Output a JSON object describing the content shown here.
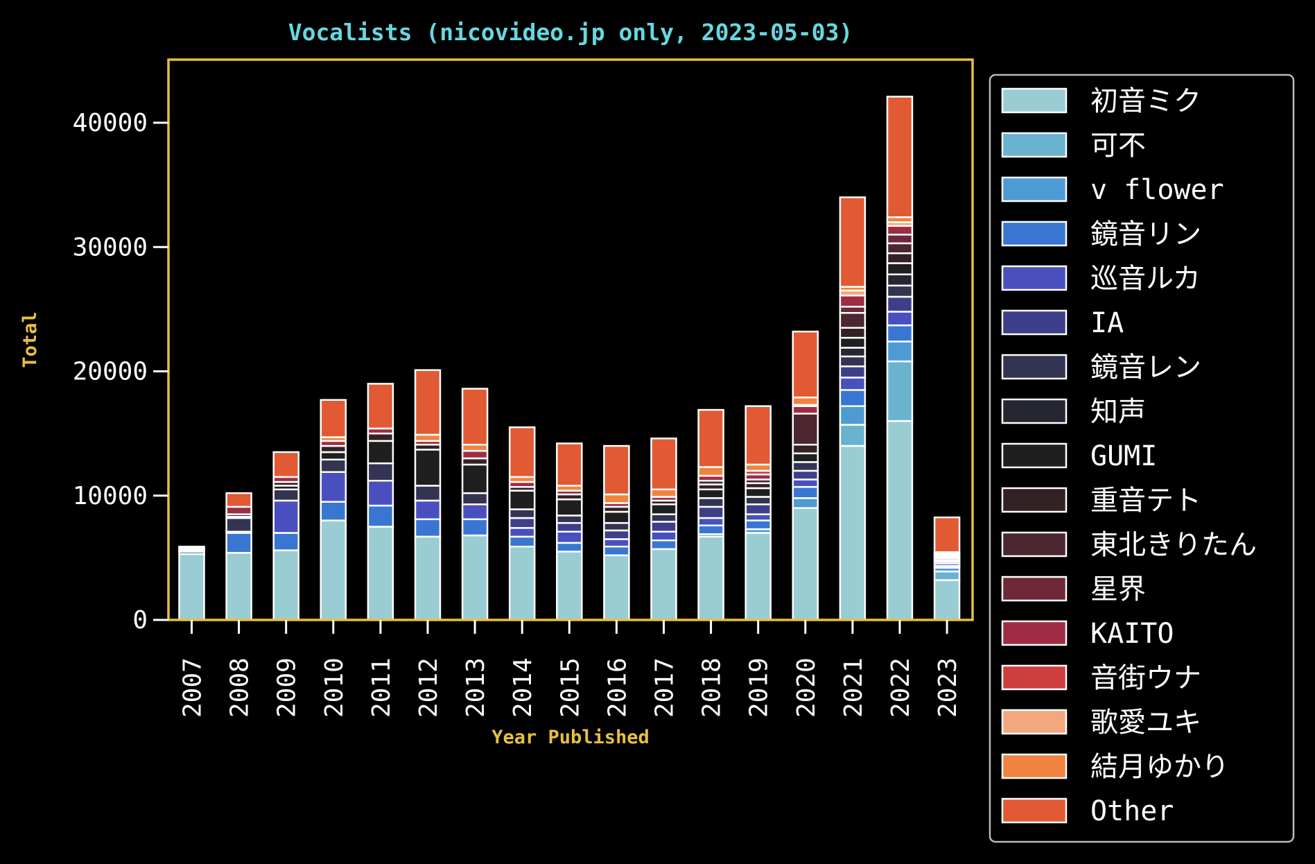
{
  "chart_data": {
    "type": "bar",
    "stacked": true,
    "title": "Vocalists (nicovideo.jp only, 2023-05-03)",
    "xlabel": "Year Published",
    "ylabel": "Total",
    "ylim": [
      0,
      45000
    ],
    "yticks": [
      0,
      10000,
      20000,
      30000,
      40000
    ],
    "legend": "outside-right",
    "grid": false,
    "colors": {
      "background": "#000000",
      "frame": "#e8c040",
      "title": "#66d8e0",
      "axis_label": "#e8c040",
      "text": "#ffffff",
      "bar_edge": "#ffffff"
    },
    "categories": [
      "2007",
      "2008",
      "2009",
      "2010",
      "2011",
      "2012",
      "2013",
      "2014",
      "2015",
      "2016",
      "2017",
      "2018",
      "2019",
      "2020",
      "2021",
      "2022",
      "2023"
    ],
    "series": [
      {
        "name": "初音ミク",
        "color": "#99ccd3",
        "values": [
          5300,
          5400,
          5600,
          8000,
          7500,
          6700,
          6800,
          5900,
          5500,
          5200,
          5700,
          6700,
          7000,
          9000,
          14000,
          16000,
          3200
        ]
      },
      {
        "name": "可不",
        "color": "#6ab3cf",
        "values": [
          0,
          0,
          0,
          0,
          0,
          0,
          0,
          0,
          0,
          0,
          0,
          0,
          0,
          0,
          1700,
          4800,
          700
        ]
      },
      {
        "name": "v flower",
        "color": "#4e9bd4",
        "values": [
          0,
          0,
          0,
          0,
          0,
          0,
          0,
          0,
          0,
          0,
          0,
          200,
          300,
          800,
          1500,
          1600,
          300
        ]
      },
      {
        "name": "鏡音リン",
        "color": "#3876d2",
        "values": [
          200,
          1600,
          1400,
          1500,
          1700,
          1400,
          1300,
          800,
          700,
          700,
          700,
          700,
          700,
          900,
          1300,
          1300,
          150
        ]
      },
      {
        "name": "巡音ルカ",
        "color": "#4a4fc0",
        "values": [
          100,
          100,
          2600,
          2400,
          2000,
          1500,
          1200,
          700,
          900,
          600,
          700,
          600,
          500,
          600,
          1000,
          1100,
          200
        ]
      },
      {
        "name": "IA",
        "color": "#3e3f8a",
        "values": [
          0,
          0,
          0,
          0,
          0,
          0,
          0,
          800,
          700,
          700,
          800,
          900,
          800,
          700,
          900,
          1200,
          150
        ]
      },
      {
        "name": "鏡音レン",
        "color": "#333352",
        "values": [
          100,
          1100,
          900,
          1000,
          1400,
          1200,
          900,
          700,
          600,
          600,
          600,
          700,
          600,
          700,
          800,
          900,
          100
        ]
      },
      {
        "name": "知声",
        "color": "#262633",
        "values": [
          0,
          0,
          0,
          0,
          0,
          0,
          0,
          0,
          0,
          0,
          0,
          0,
          0,
          0,
          700,
          900,
          150
        ]
      },
      {
        "name": "GUMI",
        "color": "#1f1f1f",
        "values": [
          0,
          100,
          300,
          600,
          1800,
          2900,
          2300,
          1500,
          1300,
          900,
          800,
          700,
          700,
          700,
          800,
          900,
          100
        ]
      },
      {
        "name": "重音テト",
        "color": "#332224",
        "values": [
          0,
          200,
          300,
          500,
          600,
          400,
          500,
          300,
          400,
          400,
          300,
          400,
          400,
          700,
          800,
          800,
          100
        ]
      },
      {
        "name": "東北きりたん",
        "color": "#4c2730",
        "values": [
          0,
          0,
          0,
          0,
          0,
          0,
          0,
          0,
          0,
          0,
          0,
          300,
          300,
          2500,
          1200,
          800,
          50
        ]
      },
      {
        "name": "星界",
        "color": "#6e2838",
        "values": [
          0,
          0,
          0,
          0,
          0,
          0,
          0,
          0,
          0,
          0,
          0,
          0,
          0,
          0,
          500,
          700,
          100
        ]
      },
      {
        "name": "KAITO",
        "color": "#a02c43",
        "values": [
          100,
          600,
          400,
          400,
          400,
          300,
          600,
          400,
          300,
          300,
          300,
          400,
          400,
          600,
          900,
          700,
          50
        ]
      },
      {
        "name": "音街ウナ",
        "color": "#cf3e3e",
        "values": [
          0,
          0,
          0,
          0,
          0,
          0,
          0,
          0,
          0,
          0,
          0,
          0,
          300,
          100,
          0,
          0,
          50
        ]
      },
      {
        "name": "歌愛ユキ",
        "color": "#f3a77f",
        "values": [
          0,
          0,
          0,
          0,
          0,
          0,
          0,
          0,
          0,
          0,
          0,
          0,
          0,
          0,
          400,
          300,
          50
        ]
      },
      {
        "name": "結月ゆかり",
        "color": "#f0843e",
        "values": [
          0,
          0,
          0,
          300,
          0,
          500,
          500,
          400,
          400,
          700,
          600,
          700,
          500,
          600,
          300,
          400,
          0
        ]
      },
      {
        "name": "Other",
        "color": "#e15a33",
        "values": [
          100,
          1100,
          2000,
          3000,
          3600,
          5200,
          4500,
          4000,
          3400,
          3900,
          4100,
          4600,
          4700,
          5300,
          7200,
          9700,
          2800
        ]
      }
    ]
  }
}
